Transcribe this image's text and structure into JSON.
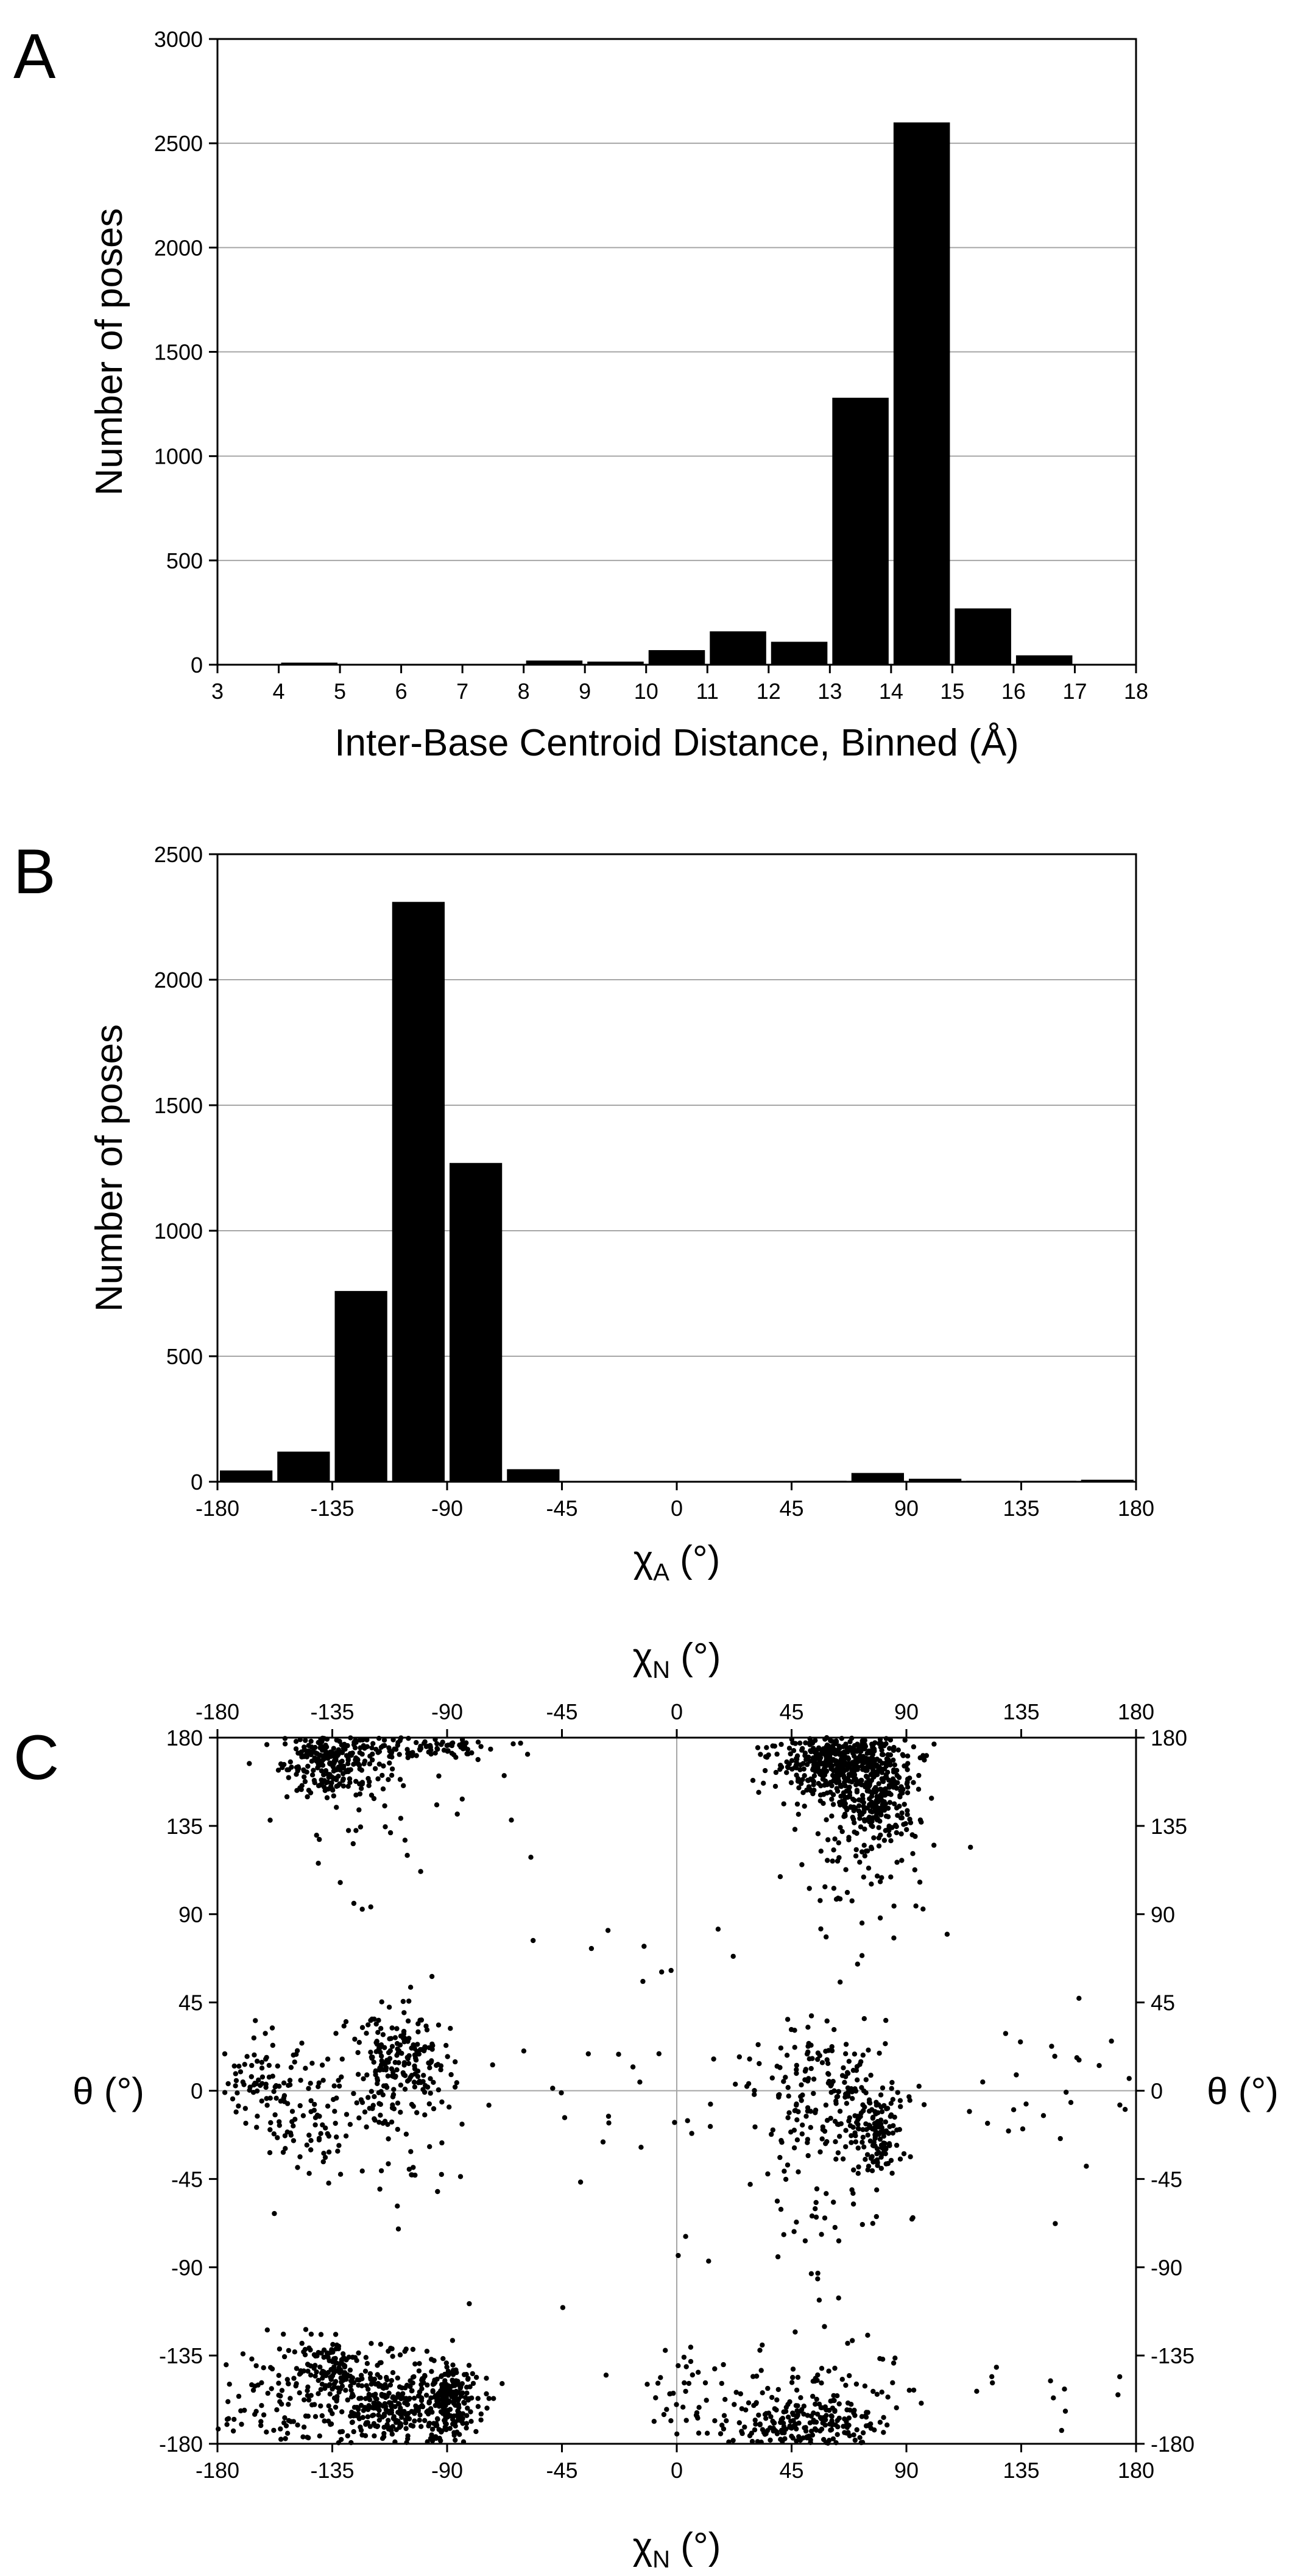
{
  "colors": {
    "bar": "#000000",
    "grid": "#a6a6a6",
    "axis": "#000000",
    "point": "#000000"
  },
  "chart_data": [
    {
      "id": "A",
      "type": "bar",
      "panel_letter": "A",
      "xlabel": "Inter-Base Centroid Distance, Binned (Å)",
      "ylabel": "Number of poses",
      "xlim": [
        3,
        18
      ],
      "ylim": [
        0,
        3000
      ],
      "xticks": [
        "3",
        "4",
        "5",
        "6",
        "7",
        "8",
        "9",
        "10",
        "11",
        "12",
        "13",
        "14",
        "15",
        "16",
        "17",
        "18"
      ],
      "yticks": [
        "0",
        "500",
        "1000",
        "1500",
        "2000",
        "2500",
        "3000"
      ],
      "grid": "horizontal",
      "bin_width": 1,
      "bins": [
        {
          "start": 4,
          "value": 10
        },
        {
          "start": 5,
          "value": 0
        },
        {
          "start": 6,
          "value": 0
        },
        {
          "start": 7,
          "value": 0
        },
        {
          "start": 8,
          "value": 20
        },
        {
          "start": 9,
          "value": 15
        },
        {
          "start": 10,
          "value": 70
        },
        {
          "start": 11,
          "value": 160
        },
        {
          "start": 12,
          "value": 110
        },
        {
          "start": 13,
          "value": 1280
        },
        {
          "start": 14,
          "value": 2600
        },
        {
          "start": 15,
          "value": 270
        },
        {
          "start": 16,
          "value": 45
        }
      ]
    },
    {
      "id": "B",
      "type": "bar",
      "panel_letter": "B",
      "xlabel_symbol": "χ",
      "xlabel_sub": "A",
      "xlabel_unit": " (°)",
      "ylabel": "Number of poses",
      "xlim": [
        -180,
        180
      ],
      "ylim": [
        0,
        2500
      ],
      "xticks": [
        "-180",
        "-135",
        "-90",
        "-45",
        "0",
        "45",
        "90",
        "135",
        "180"
      ],
      "yticks": [
        "0",
        "500",
        "1000",
        "1500",
        "2000",
        "2500"
      ],
      "grid": "horizontal",
      "bin_width": 22.5,
      "bins": [
        {
          "start": -180,
          "value": 45
        },
        {
          "start": -157.5,
          "value": 120
        },
        {
          "start": -135,
          "value": 760
        },
        {
          "start": -112.5,
          "value": 2310
        },
        {
          "start": -90,
          "value": 1270
        },
        {
          "start": -67.5,
          "value": 50
        },
        {
          "start": -45,
          "value": 3
        },
        {
          "start": -22.5,
          "value": 2
        },
        {
          "start": 0,
          "value": 2
        },
        {
          "start": 22.5,
          "value": 3
        },
        {
          "start": 45,
          "value": 4
        },
        {
          "start": 67.5,
          "value": 35
        },
        {
          "start": 90,
          "value": 12
        },
        {
          "start": 112.5,
          "value": 4
        },
        {
          "start": 135,
          "value": 4
        },
        {
          "start": 157.5,
          "value": 8
        }
      ]
    },
    {
      "id": "C",
      "type": "scatter",
      "panel_letter": "C",
      "xlabel_symbol": "χ",
      "xlabel_sub": "N",
      "xlabel_unit": " (°)",
      "ylabel": "θ (°)",
      "xlim": [
        -180,
        180
      ],
      "ylim": [
        -180,
        180
      ],
      "xticks": [
        "-180",
        "-135",
        "-90",
        "-45",
        "0",
        "45",
        "90",
        "135",
        "180"
      ],
      "yticks": [
        "-180",
        "-135",
        "-90",
        "-45",
        "0",
        "45",
        "90",
        "135",
        "180"
      ],
      "reference_lines": {
        "x": 0,
        "y": 0
      },
      "clusters": [
        {
          "x": -135,
          "y": 168,
          "sx": 10,
          "sy": 9,
          "n": 260
        },
        {
          "x": -100,
          "y": 176,
          "sx": 16,
          "sy": 4,
          "n": 120
        },
        {
          "x": -125,
          "y": 140,
          "sx": 25,
          "sy": 18,
          "n": 35
        },
        {
          "x": 63,
          "y": 168,
          "sx": 13,
          "sy": 9,
          "n": 480
        },
        {
          "x": 78,
          "y": 150,
          "sx": 8,
          "sy": 12,
          "n": 260
        },
        {
          "x": 72,
          "y": 118,
          "sx": 14,
          "sy": 20,
          "n": 70
        },
        {
          "x": -162,
          "y": 2,
          "sx": 11,
          "sy": 12,
          "n": 90
        },
        {
          "x": -108,
          "y": 12,
          "sx": 10,
          "sy": 14,
          "n": 210
        },
        {
          "x": -138,
          "y": -12,
          "sx": 11,
          "sy": 16,
          "n": 75
        },
        {
          "x": -102,
          "y": -35,
          "sx": 8,
          "sy": 15,
          "n": 18
        },
        {
          "x": 60,
          "y": -3,
          "sx": 15,
          "sy": 16,
          "n": 190
        },
        {
          "x": 78,
          "y": -22,
          "sx": 5,
          "sy": 10,
          "n": 120
        },
        {
          "x": 52,
          "y": -62,
          "sx": 10,
          "sy": 22,
          "n": 30
        },
        {
          "x": -138,
          "y": -140,
          "sx": 8,
          "sy": 7,
          "n": 110
        },
        {
          "x": -110,
          "y": -160,
          "sx": 15,
          "sy": 12,
          "n": 380
        },
        {
          "x": -90,
          "y": -160,
          "sx": 6,
          "sy": 9,
          "n": 160
        },
        {
          "x": -158,
          "y": -158,
          "sx": 10,
          "sy": 14,
          "n": 80
        },
        {
          "x": 50,
          "y": -170,
          "sx": 14,
          "sy": 7,
          "n": 200
        },
        {
          "x": 60,
          "y": -150,
          "sx": 18,
          "sy": 12,
          "n": 70
        },
        {
          "x": 5,
          "y": -155,
          "sx": 10,
          "sy": 12,
          "n": 40
        },
        {
          "x": 0,
          "y": 0,
          "sx": 95,
          "sy": 60,
          "n": 70
        },
        {
          "x": 150,
          "y": 8,
          "sx": 20,
          "sy": 20,
          "n": 22
        },
        {
          "x": 150,
          "y": -160,
          "sx": 15,
          "sy": 12,
          "n": 12
        }
      ]
    }
  ]
}
